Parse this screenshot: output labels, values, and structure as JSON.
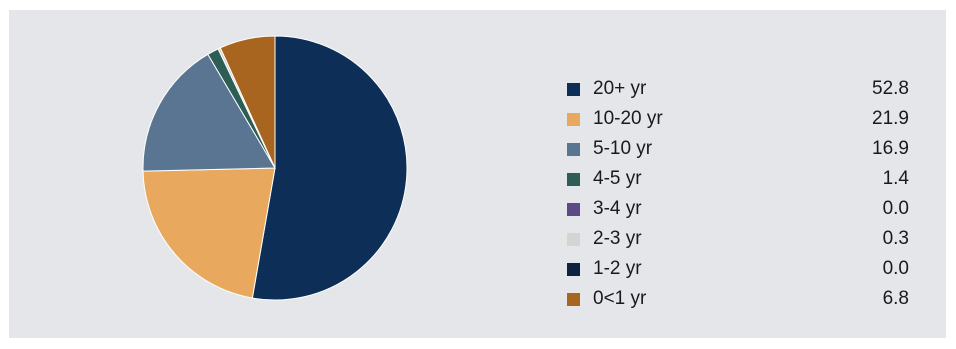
{
  "chart_data": {
    "type": "pie",
    "title": "",
    "categories": [
      "20+ yr",
      "10-20 yr",
      "5-10 yr",
      "4-5 yr",
      "3-4 yr",
      "2-3 yr",
      "1-2 yr",
      "0<1 yr"
    ],
    "values": [
      52.8,
      21.9,
      16.9,
      1.4,
      0.0,
      0.3,
      0.0,
      6.8
    ],
    "value_labels": [
      "52.8",
      "21.9",
      "16.9",
      "1.4",
      "0.0",
      "0.3",
      "0.0",
      "6.8"
    ],
    "colors": [
      "#0d2f57",
      "#e8a95e",
      "#5a7591",
      "#2d5e55",
      "#5c4a86",
      "#d3d5d2",
      "#0d2340",
      "#a8651f"
    ],
    "legend_position": "right",
    "start_angle": "12 o'clock",
    "direction": "clockwise"
  }
}
